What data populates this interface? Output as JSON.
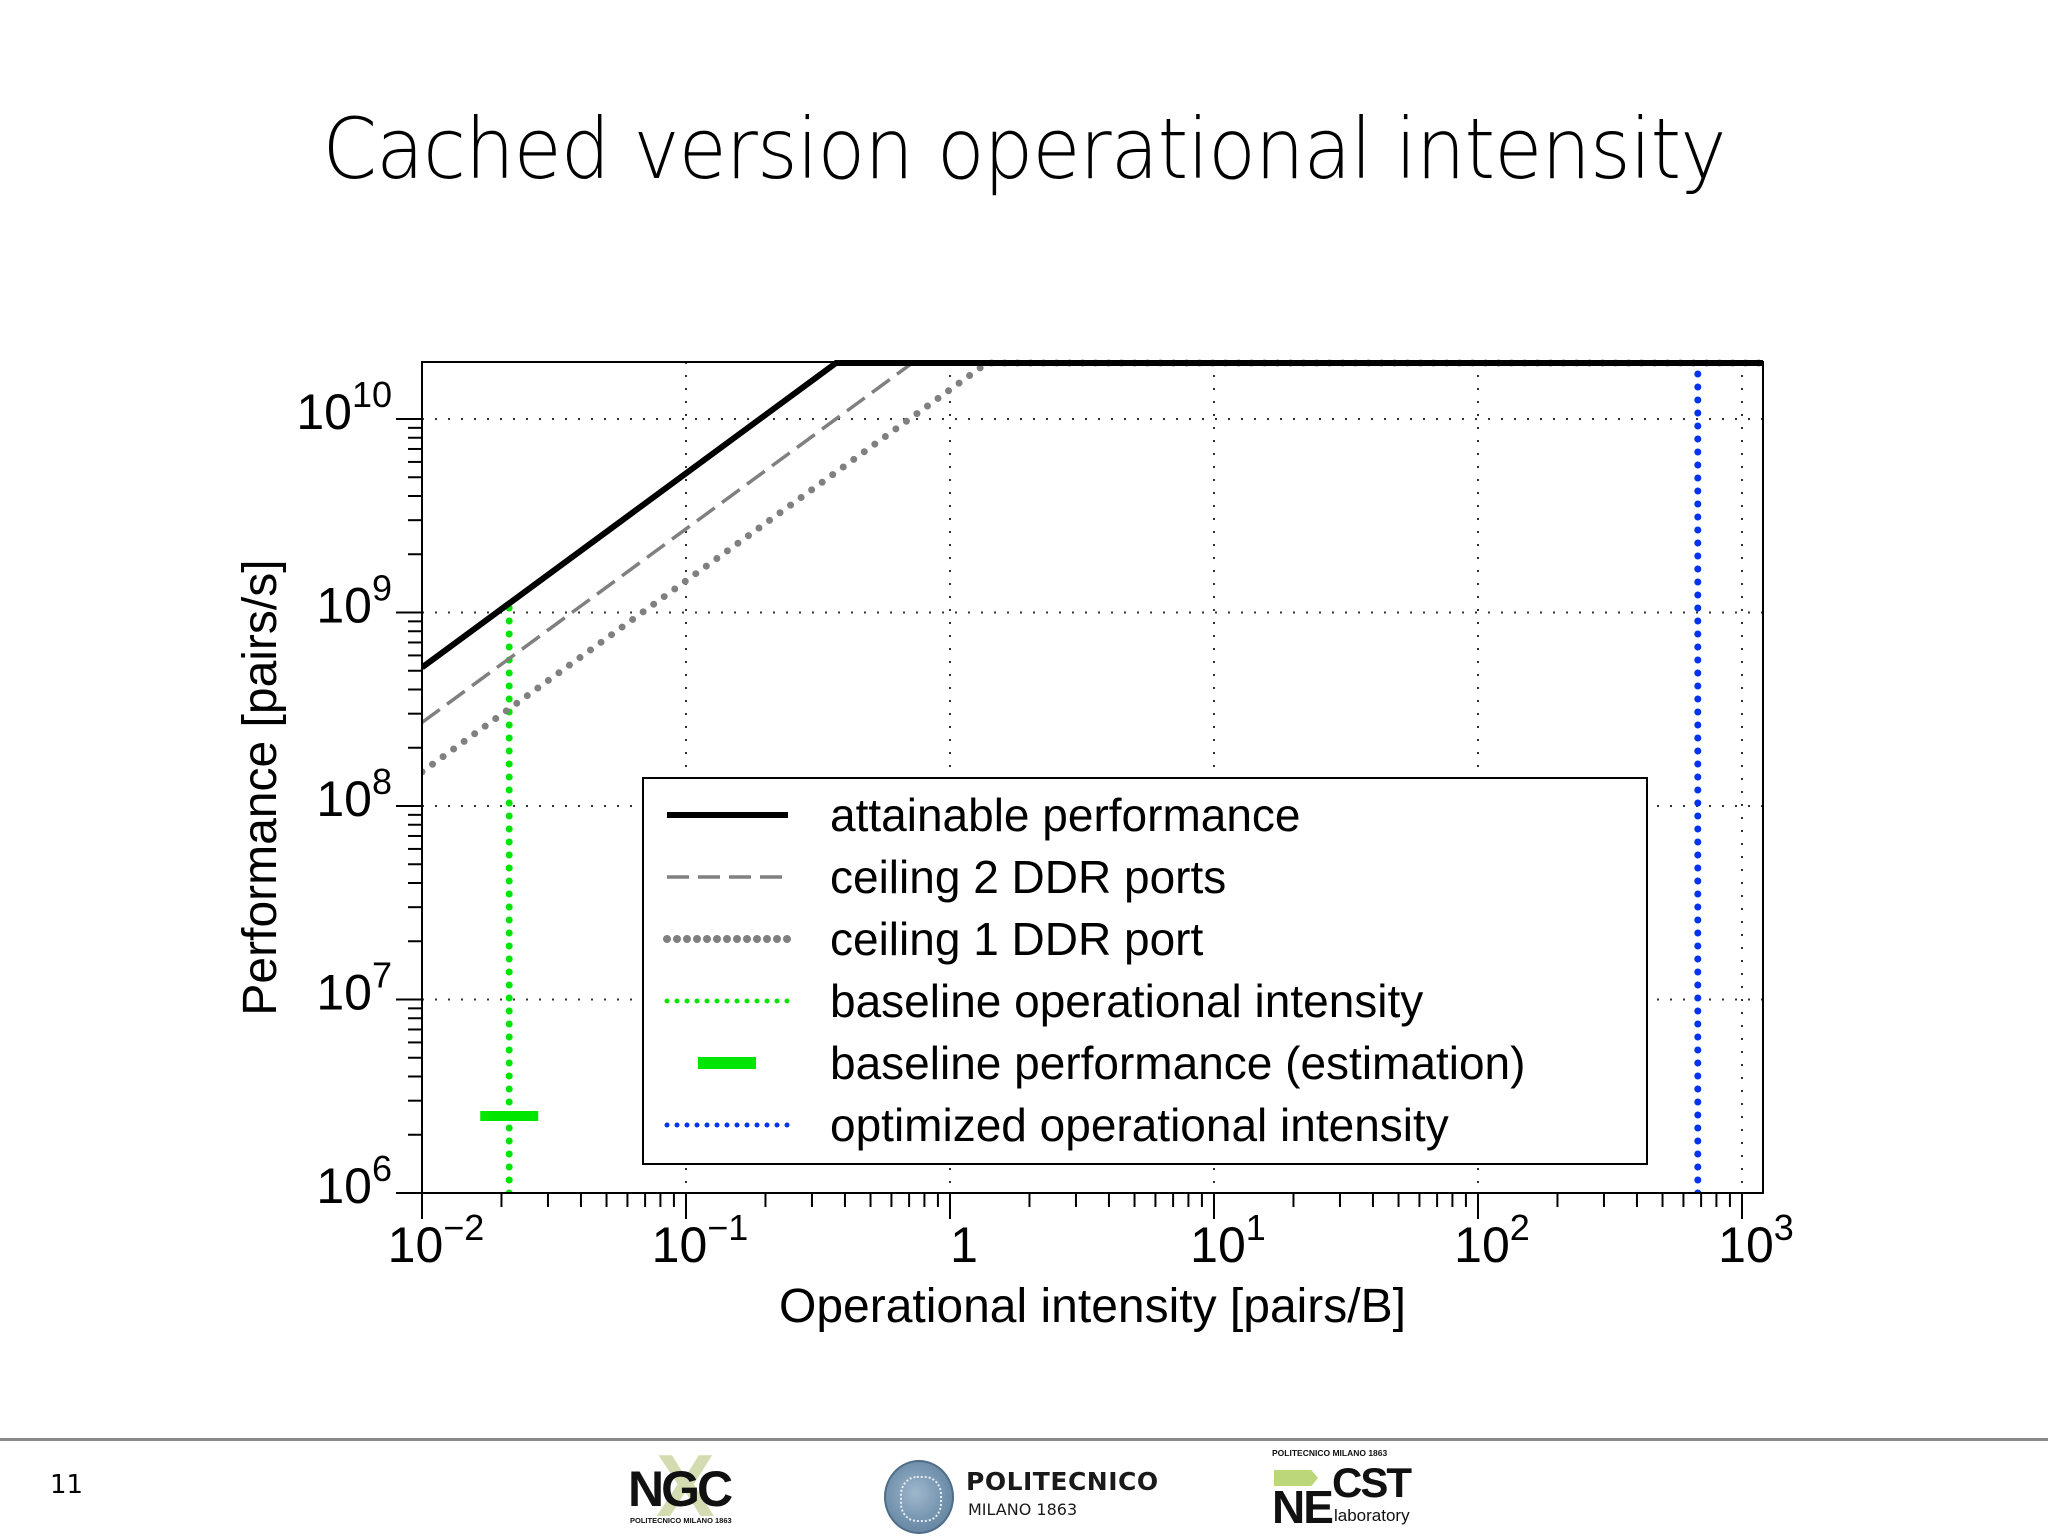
{
  "slide": {
    "title": "Cached version operational intensity",
    "page_number": "11"
  },
  "footer": {
    "logos": [
      {
        "name": "NGC",
        "text": "NGC",
        "subtitle": "POLITECNICO MILANO 1863"
      },
      {
        "name": "Politecnico",
        "line1": "POLITECNICO",
        "line2": "MILANO 1863"
      },
      {
        "name": "NECST",
        "top": "POLITECNICO MILANO 1863",
        "ne": "NE",
        "cst": "CST",
        "sub": "laboratory"
      }
    ]
  },
  "chart_data": {
    "type": "line",
    "title": "",
    "xlabel": "Operational intensity [pairs/B]",
    "ylabel": "Performance [pairs/s]",
    "xscale": "log",
    "yscale": "log",
    "xlim": [
      0.01,
      1200
    ],
    "ylim": [
      1000000,
      20000000000
    ],
    "grid": true,
    "x_ticks": [
      0.01,
      0.1,
      1,
      10,
      100,
      1000
    ],
    "x_tick_labels": [
      "10^-2",
      "10^-1",
      "1",
      "10^1",
      "10^2",
      "10^3"
    ],
    "y_ticks": [
      1000000,
      10000000,
      100000000,
      1000000000,
      10000000000
    ],
    "y_tick_labels": [
      "10^6",
      "10^7",
      "10^8",
      "10^9",
      "10^10"
    ],
    "legend_position": "lower right",
    "series": [
      {
        "name": "attainable performance",
        "style": "solid",
        "color": "#000000",
        "width": 6,
        "x": [
          0.01,
          0.37,
          1200
        ],
        "y": [
          520000000,
          19600000000,
          19600000000
        ]
      },
      {
        "name": "ceiling 2 DDR ports",
        "style": "dashed",
        "color": "#808080",
        "width": 3.5,
        "x": [
          0.01,
          0.72,
          1200
        ],
        "y": [
          270000000,
          19600000000,
          19600000000
        ]
      },
      {
        "name": "ceiling 1 DDR port",
        "style": "dotted",
        "color": "#808080",
        "width": 7,
        "x": [
          0.01,
          1.38,
          1200
        ],
        "y": [
          150000000,
          19600000000,
          19600000000
        ]
      },
      {
        "name": "baseline operational intensity",
        "style": "dotted-vertical",
        "color": "#00e600",
        "width": 7,
        "x": [
          0.0214,
          0.0214
        ],
        "y": [
          1000000,
          1100000000
        ]
      },
      {
        "name": "baseline performance (estimation)",
        "style": "marker-bar",
        "color": "#00e600",
        "width": 10,
        "x": [
          0.0214
        ],
        "y": [
          2500000
        ]
      },
      {
        "name": "optimized operational intensity",
        "style": "dotted-vertical",
        "color": "#0033ee",
        "width": 7,
        "x": [
          680,
          680
        ],
        "y": [
          1000000,
          19600000000
        ]
      }
    ]
  }
}
